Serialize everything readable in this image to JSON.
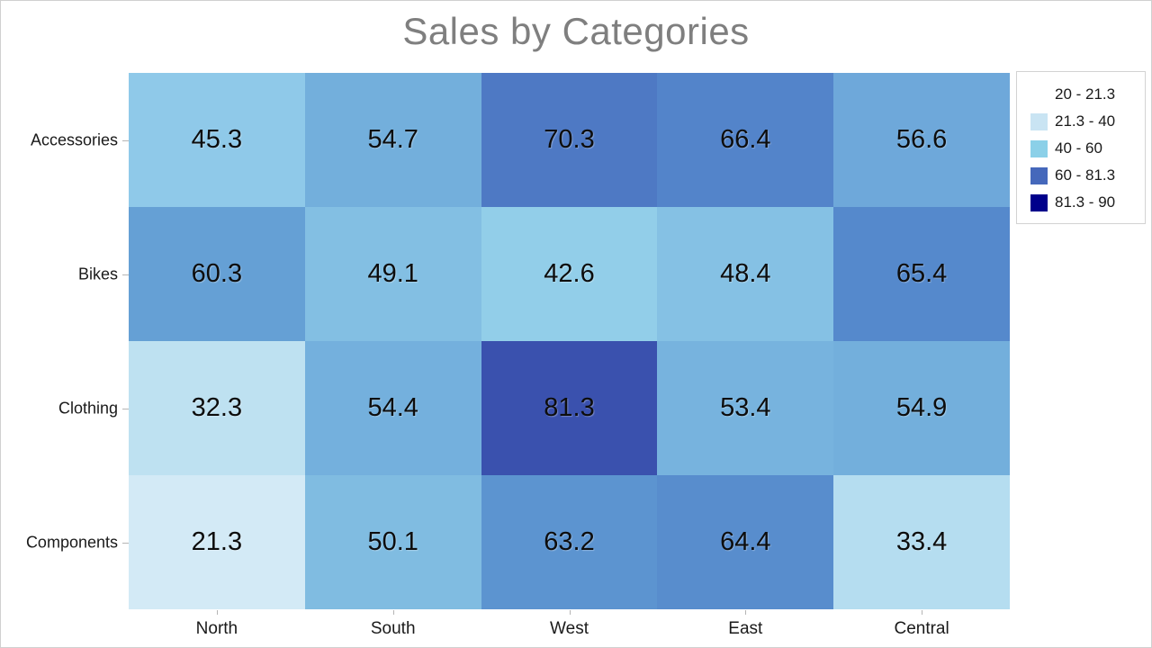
{
  "window": {
    "background": "#ffffff",
    "border_color": "#d0d0d0"
  },
  "title": {
    "text": "Sales by Categories",
    "color": "#7f7f7f"
  },
  "chart_data": {
    "type": "heatmap",
    "title": "Sales by Categories",
    "x_categories": [
      "North",
      "South",
      "West",
      "East",
      "Central"
    ],
    "y_categories": [
      "Accessories",
      "Bikes",
      "Clothing",
      "Components"
    ],
    "values": [
      [
        45.3,
        54.7,
        70.3,
        66.4,
        56.6
      ],
      [
        60.3,
        49.1,
        42.6,
        48.4,
        65.4
      ],
      [
        32.3,
        54.4,
        81.3,
        53.4,
        54.9
      ],
      [
        21.3,
        50.1,
        63.2,
        64.4,
        33.4
      ]
    ],
    "cell_colors": [
      [
        "#8fc9e9",
        "#73afdc",
        "#4e79c4",
        "#5384ca",
        "#6ea8da"
      ],
      [
        "#65a0d5",
        "#83bfe3",
        "#92cee9",
        "#85c1e4",
        "#5589cc"
      ],
      [
        "#bee1f1",
        "#74b0dd",
        "#3a51ae",
        "#77b3de",
        "#73afdc"
      ],
      [
        "#d3eaf6",
        "#80bce1",
        "#5c94d0",
        "#588dcd",
        "#b5ddf0"
      ]
    ],
    "value_range": [
      20,
      90
    ],
    "legend": {
      "position": "top-right",
      "entries": [
        {
          "label": "20 - 21.3",
          "color": "#ffffff"
        },
        {
          "label": "21.3 - 40",
          "color": "#c9e4f3"
        },
        {
          "label": "40 - 60",
          "color": "#8bd0e8"
        },
        {
          "label": "60 - 81.3",
          "color": "#4568bb"
        },
        {
          "label": "81.3 - 90",
          "color": "#00008b"
        }
      ]
    },
    "axes": {
      "grid": false,
      "tick_color": "#b5b5b5"
    }
  }
}
